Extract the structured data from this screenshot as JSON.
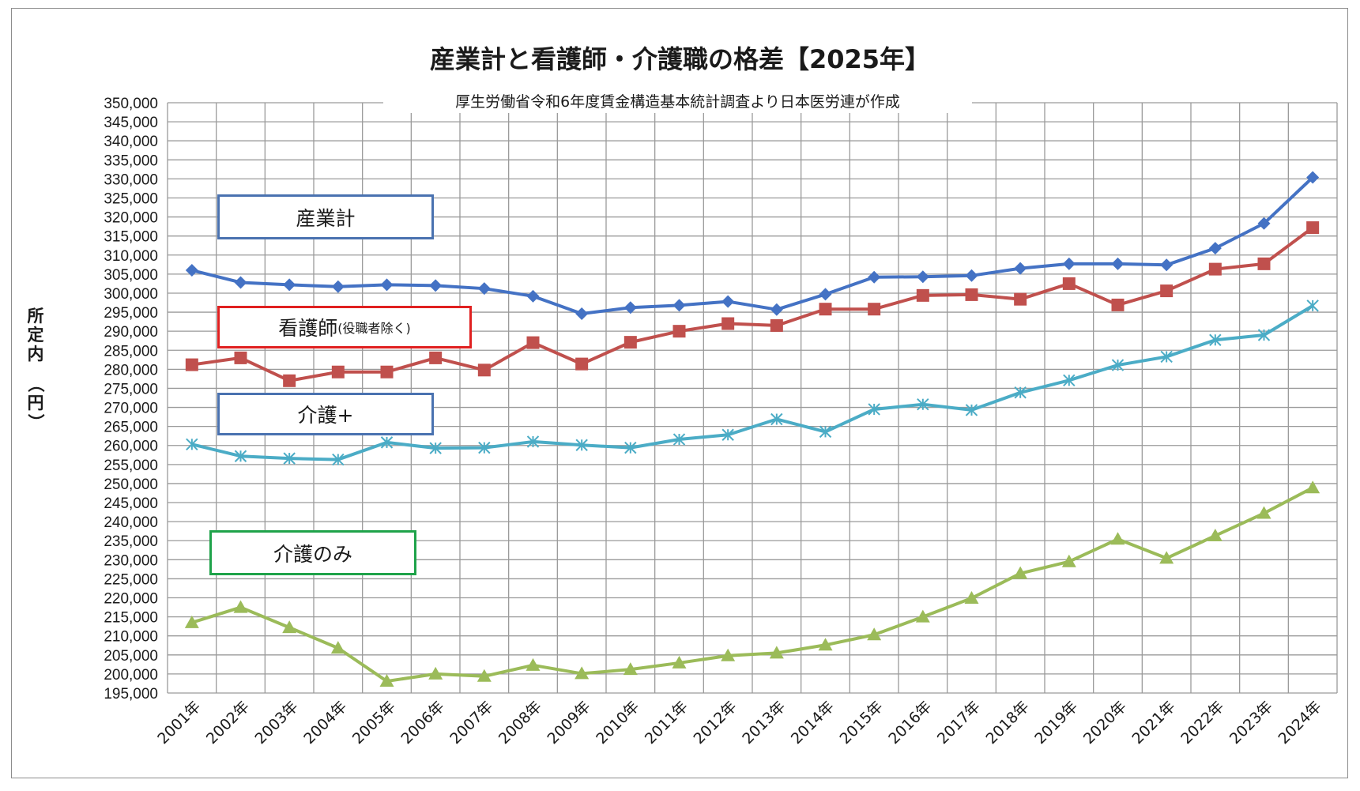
{
  "title": "産業計と看護師・介護職の格差【2025年】",
  "subtitle": "厚生労働省令和6年度賃金構造基本統計調査より日本医労連が作成",
  "ylabel_chars": [
    "所",
    "定",
    "内"
  ],
  "ylabel_unit": "（円）",
  "legend": [
    {
      "label": "産業計",
      "note": "",
      "color": "#4a72b0"
    },
    {
      "label": "看護師",
      "note": "(役職者除く)",
      "color": "#e02020"
    },
    {
      "label": "介護+",
      "note": "",
      "color": "#4a72b0"
    },
    {
      "label": "介護のみ",
      "note": "",
      "color": "#1fa34a"
    }
  ],
  "chart_data": {
    "type": "line",
    "title": "産業計と看護師・介護職の格差【2025年】",
    "subtitle": "厚生労働省令和6年度賃金構造基本統計調査より日本医労連が作成",
    "ylabel": "所定内（円）",
    "xlabel": "",
    "ylim": [
      195000,
      350000
    ],
    "ytick_step": 5000,
    "grid": true,
    "categories": [
      "2001年",
      "2002年",
      "2003年",
      "2004年",
      "2005年",
      "2006年",
      "2007年",
      "2008年",
      "2009年",
      "2010年",
      "2011年",
      "2012年",
      "2013年",
      "2014年",
      "2015年",
      "2016年",
      "2017年",
      "2018年",
      "2019年",
      "2020年",
      "2021年",
      "2022年",
      "2023年",
      "2024年"
    ],
    "series": [
      {
        "name": "産業計",
        "color": "#4472c4",
        "marker": "diamond",
        "values": [
          306000,
          302800,
          302200,
          301700,
          302200,
          302000,
          301200,
          299200,
          294600,
          296200,
          296800,
          297800,
          295700,
          299700,
          304200,
          304300,
          304600,
          306500,
          307700,
          307700,
          307400,
          311800,
          318300,
          330400
        ]
      },
      {
        "name": "看護師(役職者除く)",
        "color": "#c0504d",
        "marker": "square",
        "values": [
          281200,
          283000,
          277000,
          279300,
          279300,
          283000,
          279800,
          287000,
          281400,
          287100,
          290000,
          292000,
          291500,
          295800,
          295800,
          299400,
          299600,
          298400,
          302500,
          296900,
          300600,
          306300,
          307700,
          317200
        ]
      },
      {
        "name": "介護+",
        "color": "#4bacc6",
        "marker": "star",
        "values": [
          260300,
          257200,
          256600,
          256300,
          260800,
          259300,
          259400,
          261000,
          260100,
          259400,
          261600,
          262800,
          266900,
          263600,
          269500,
          270800,
          269300,
          273900,
          277100,
          281100,
          283300,
          287700,
          289000,
          296700
        ]
      },
      {
        "name": "介護のみ",
        "color": "#9bbb59",
        "marker": "triangle",
        "values": [
          213500,
          217500,
          212200,
          206800,
          198100,
          200000,
          199400,
          202300,
          200100,
          201200,
          202900,
          204800,
          205500,
          207600,
          210300,
          215000,
          219900,
          226400,
          229500,
          235400,
          230400,
          236300,
          242200,
          248900
        ]
      }
    ]
  }
}
